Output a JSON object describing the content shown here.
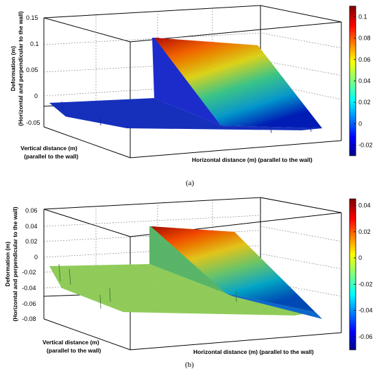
{
  "chart_data": [
    {
      "type": "surface",
      "panel_label": "(a)",
      "zlabel_line1": "Deformation (m)",
      "zlabel_line2": "(Horizontal and perpendicular to the wall)",
      "ylabel_line1": "Vertical distance (m)",
      "ylabel_line2": "(parallel to the wall)",
      "xlabel": "Horizontal distance (m) (parallel to the wall)",
      "zticks": [
        "-0.05",
        "0",
        "0.05",
        "0.1",
        "0.15"
      ],
      "zlim": [
        -0.05,
        0.15
      ],
      "colorbar_ticks": [
        "-0.02",
        "0",
        "0.02",
        "0.04",
        "0.06",
        "0.08",
        "0.1"
      ],
      "colorbar_range": [
        -0.03,
        0.11
      ],
      "colormap": "jet",
      "description_values": {
        "flat_level": -0.01,
        "peak_level": 0.1
      }
    },
    {
      "type": "surface",
      "panel_label": "(b)",
      "zlabel_line1": "Deformation (m)",
      "zlabel_line2": "(Horizontal and perpendicular to the wall)",
      "ylabel_line1": "Vertical distance (m)",
      "ylabel_line2": "(parallel to the wall)",
      "xlabel": "Horizontal distance (m) (parallel to the wall)",
      "zticks": [
        "-0.08",
        "-0.06",
        "-0.04",
        "-0.02",
        "0",
        "0.02",
        "0.04",
        "0.06"
      ],
      "zlim": [
        -0.08,
        0.06
      ],
      "colorbar_ticks": [
        "-0.06",
        "-0.04",
        "-0.02",
        "0",
        "0.02",
        "0.04"
      ],
      "colorbar_range": [
        -0.07,
        0.045
      ],
      "colormap": "jet",
      "description_values": {
        "flat_level": -0.02,
        "peak_level": 0.04
      }
    }
  ]
}
